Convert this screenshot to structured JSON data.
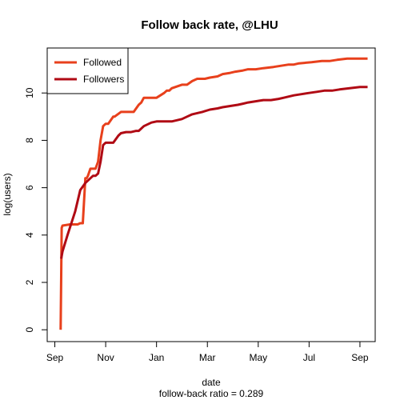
{
  "chart_data": {
    "type": "line",
    "title": "Follow back rate, @LHU",
    "xlabel": "date",
    "ylabel": "log(users)",
    "subtitle": "follow-back ratio = 0.289",
    "x_ticks": [
      "Sep",
      "Nov",
      "Jan",
      "Mar",
      "May",
      "Jul",
      "Sep"
    ],
    "y_ticks": [
      "0",
      "2",
      "4",
      "6",
      "8",
      "10"
    ],
    "ylim": [
      -0.5,
      11.9
    ],
    "xlim": [
      -0.3,
      12.6
    ],
    "legend_position": "top-left",
    "grid": false,
    "series": [
      {
        "name": "Followed",
        "color": "#e8401c",
        "x": [
          0.23,
          0.27,
          0.3,
          0.6,
          0.9,
          1.0,
          1.1,
          1.2,
          1.25,
          1.3,
          1.4,
          1.5,
          1.6,
          1.7,
          1.8,
          1.9,
          2.0,
          2.1,
          2.3,
          2.35,
          2.6,
          2.7,
          3.1,
          3.3,
          3.4,
          3.5,
          3.6,
          3.8,
          4.0,
          4.3,
          4.4,
          4.5,
          4.6,
          5.0,
          5.2,
          5.4,
          5.6,
          5.9,
          6.1,
          6.4,
          6.6,
          6.9,
          7.1,
          7.4,
          7.6,
          7.9,
          8.2,
          8.6,
          8.9,
          9.2,
          9.4,
          9.6,
          10.1,
          10.5,
          10.8,
          11.1,
          11.5,
          11.9,
          12.3
        ],
        "y": [
          0.0,
          4.3,
          4.4,
          4.45,
          4.45,
          4.5,
          4.5,
          6.4,
          6.4,
          6.5,
          6.8,
          6.8,
          6.8,
          7.1,
          8.0,
          8.6,
          8.7,
          8.7,
          9.0,
          9.0,
          9.2,
          9.2,
          9.2,
          9.5,
          9.6,
          9.8,
          9.8,
          9.8,
          9.8,
          10.0,
          10.1,
          10.1,
          10.2,
          10.35,
          10.35,
          10.5,
          10.6,
          10.6,
          10.65,
          10.7,
          10.8,
          10.85,
          10.9,
          10.95,
          11.0,
          11.0,
          11.05,
          11.1,
          11.15,
          11.2,
          11.2,
          11.25,
          11.3,
          11.35,
          11.35,
          11.4,
          11.45,
          11.45,
          11.45
        ]
      },
      {
        "name": "Followers",
        "color": "#b00a14",
        "x": [
          0.25,
          0.3,
          0.5,
          0.8,
          1.0,
          1.2,
          1.4,
          1.5,
          1.6,
          1.7,
          1.8,
          1.9,
          2.0,
          2.1,
          2.3,
          2.5,
          2.6,
          2.8,
          3.0,
          3.2,
          3.3,
          3.5,
          3.8,
          4.0,
          4.2,
          4.4,
          4.6,
          4.8,
          5.0,
          5.2,
          5.4,
          5.6,
          5.8,
          6.1,
          6.4,
          6.6,
          6.9,
          7.2,
          7.4,
          7.6,
          7.9,
          8.2,
          8.5,
          8.8,
          9.0,
          9.2,
          9.4,
          9.7,
          10.0,
          10.3,
          10.6,
          10.9,
          11.2,
          11.6,
          12.0,
          12.3
        ],
        "y": [
          3.0,
          3.3,
          4.0,
          5.0,
          5.9,
          6.2,
          6.4,
          6.5,
          6.5,
          6.6,
          7.1,
          7.8,
          7.9,
          7.9,
          7.9,
          8.2,
          8.3,
          8.35,
          8.35,
          8.4,
          8.4,
          8.6,
          8.75,
          8.8,
          8.8,
          8.8,
          8.8,
          8.85,
          8.9,
          9.0,
          9.1,
          9.15,
          9.2,
          9.3,
          9.35,
          9.4,
          9.45,
          9.5,
          9.55,
          9.6,
          9.65,
          9.7,
          9.7,
          9.75,
          9.8,
          9.85,
          9.9,
          9.95,
          10.0,
          10.05,
          10.1,
          10.1,
          10.15,
          10.2,
          10.25,
          10.25
        ]
      }
    ]
  }
}
